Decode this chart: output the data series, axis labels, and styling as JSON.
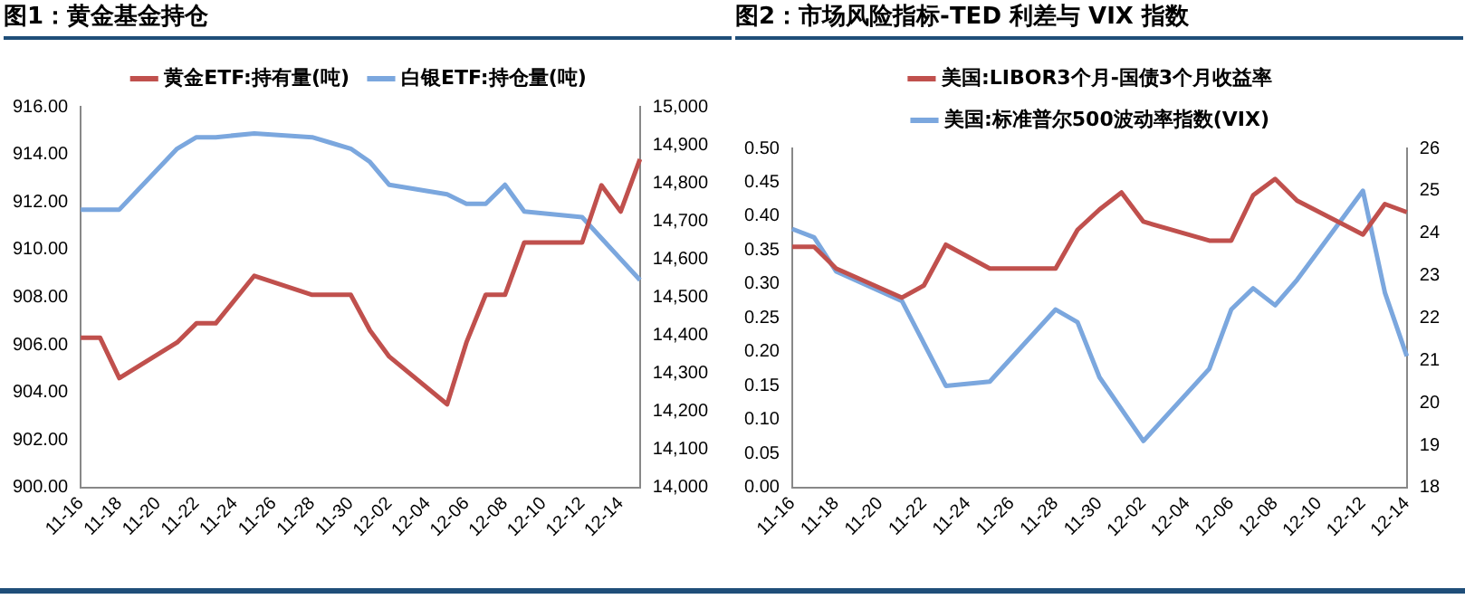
{
  "chart_data": [
    {
      "type": "line",
      "title": "图1：黄金基金持仓",
      "legend": "top",
      "grid": false,
      "marker": "none",
      "line_style": "solid",
      "categories": [
        "11-16",
        null,
        "11-18",
        null,
        "11-20",
        null,
        "11-22",
        null,
        "11-24",
        null,
        "11-26",
        null,
        "11-28",
        null,
        "11-30",
        null,
        "12-02",
        null,
        "12-04",
        null,
        "12-06",
        null,
        "12-08",
        null,
        "12-10",
        null,
        "12-12",
        null,
        "12-14",
        null
      ],
      "series": [
        {
          "name": "黄金ETF:持有量(吨)",
          "color": "#c0504d",
          "values": [
            906.3,
            906.3,
            904.6,
            null,
            null,
            906.1,
            906.9,
            906.9,
            null,
            908.9,
            null,
            null,
            908.1,
            908.1,
            908.1,
            906.6,
            905.5,
            null,
            null,
            903.5,
            906.1,
            908.1,
            908.1,
            910.3,
            null,
            null,
            910.3,
            912.7,
            911.6,
            913.8
          ]
        },
        {
          "name": "白银ETF:持仓量(吨)",
          "color": "#7ba7de",
          "axis": "y2",
          "values": [
            14730,
            14730,
            14730,
            null,
            null,
            14890,
            14920,
            14920,
            null,
            14930,
            null,
            null,
            14920,
            14905,
            14890,
            14855,
            14795,
            null,
            null,
            14770,
            14745,
            14745,
            14795,
            14725,
            null,
            null,
            14710,
            14655,
            14600,
            14545
          ]
        }
      ],
      "ylim": [
        900,
        916
      ],
      "yticks": [
        {
          "value": 900,
          "label": "900.00"
        },
        {
          "value": 902,
          "label": "902.00"
        },
        {
          "value": 904,
          "label": "904.00"
        },
        {
          "value": 906,
          "label": "906.00"
        },
        {
          "value": 908,
          "label": "908.00"
        },
        {
          "value": 910,
          "label": "910.00"
        },
        {
          "value": 912,
          "label": "912.00"
        },
        {
          "value": 914,
          "label": "914.00"
        },
        {
          "value": 916,
          "label": "916.00"
        }
      ],
      "y2lim": [
        14000,
        15000
      ],
      "y2ticks": [
        {
          "value": 14000,
          "label": "14,000"
        },
        {
          "value": 14100,
          "label": "14,100"
        },
        {
          "value": 14200,
          "label": "14,200"
        },
        {
          "value": 14300,
          "label": "14,300"
        },
        {
          "value": 14400,
          "label": "14,400"
        },
        {
          "value": 14500,
          "label": "14,500"
        },
        {
          "value": 14600,
          "label": "14,600"
        },
        {
          "value": 14700,
          "label": "14,700"
        },
        {
          "value": 14800,
          "label": "14,800"
        },
        {
          "value": 14900,
          "label": "14,900"
        },
        {
          "value": 15000,
          "label": "15,000"
        }
      ]
    },
    {
      "type": "line",
      "title": "图2：市场风险指标-TED 利差与 VIX 指数",
      "legend": "top",
      "grid": false,
      "marker": "none",
      "line_style": "solid",
      "categories": [
        "11-16",
        null,
        "11-18",
        null,
        "11-20",
        null,
        "11-22",
        null,
        "11-24",
        null,
        "11-26",
        null,
        "11-28",
        null,
        "11-30",
        null,
        "12-02",
        null,
        "12-04",
        null,
        "12-06",
        null,
        "12-08",
        null,
        "12-10",
        null,
        "12-12",
        null,
        "12-14"
      ],
      "series": [
        {
          "name": "美国:LIBOR3个月-国债3个月收益率",
          "color": "#c0504d",
          "values": [
            0.355,
            0.355,
            0.323,
            null,
            null,
            0.28,
            0.298,
            0.358,
            null,
            0.323,
            null,
            null,
            0.323,
            0.38,
            0.41,
            0.435,
            0.392,
            null,
            null,
            0.364,
            0.364,
            0.431,
            0.455,
            0.423,
            null,
            null,
            0.373,
            0.418,
            0.406
          ]
        },
        {
          "name": "美国:标准普尔500波动率指数(VIX)",
          "color": "#7ba7de",
          "axis": "y2",
          "values": [
            24.1,
            23.9,
            23.1,
            null,
            null,
            22.4,
            null,
            20.4,
            null,
            20.5,
            null,
            null,
            22.2,
            21.9,
            20.6,
            null,
            19.1,
            null,
            null,
            20.8,
            22.2,
            22.7,
            22.3,
            22.9,
            null,
            null,
            25.0,
            22.6,
            21.1
          ]
        }
      ],
      "ylim": [
        0,
        0.5
      ],
      "yticks": [
        {
          "value": 0,
          "label": "0.00"
        },
        {
          "value": 0.05,
          "label": "0.05"
        },
        {
          "value": 0.1,
          "label": "0.10"
        },
        {
          "value": 0.15,
          "label": "0.15"
        },
        {
          "value": 0.2,
          "label": "0.20"
        },
        {
          "value": 0.25,
          "label": "0.25"
        },
        {
          "value": 0.3,
          "label": "0.30"
        },
        {
          "value": 0.35,
          "label": "0.35"
        },
        {
          "value": 0.4,
          "label": "0.40"
        },
        {
          "value": 0.45,
          "label": "0.45"
        },
        {
          "value": 0.5,
          "label": "0.50"
        }
      ],
      "y2lim": [
        18,
        26
      ],
      "y2ticks": [
        18,
        19,
        20,
        21,
        22,
        23,
        24,
        25,
        26
      ]
    }
  ]
}
